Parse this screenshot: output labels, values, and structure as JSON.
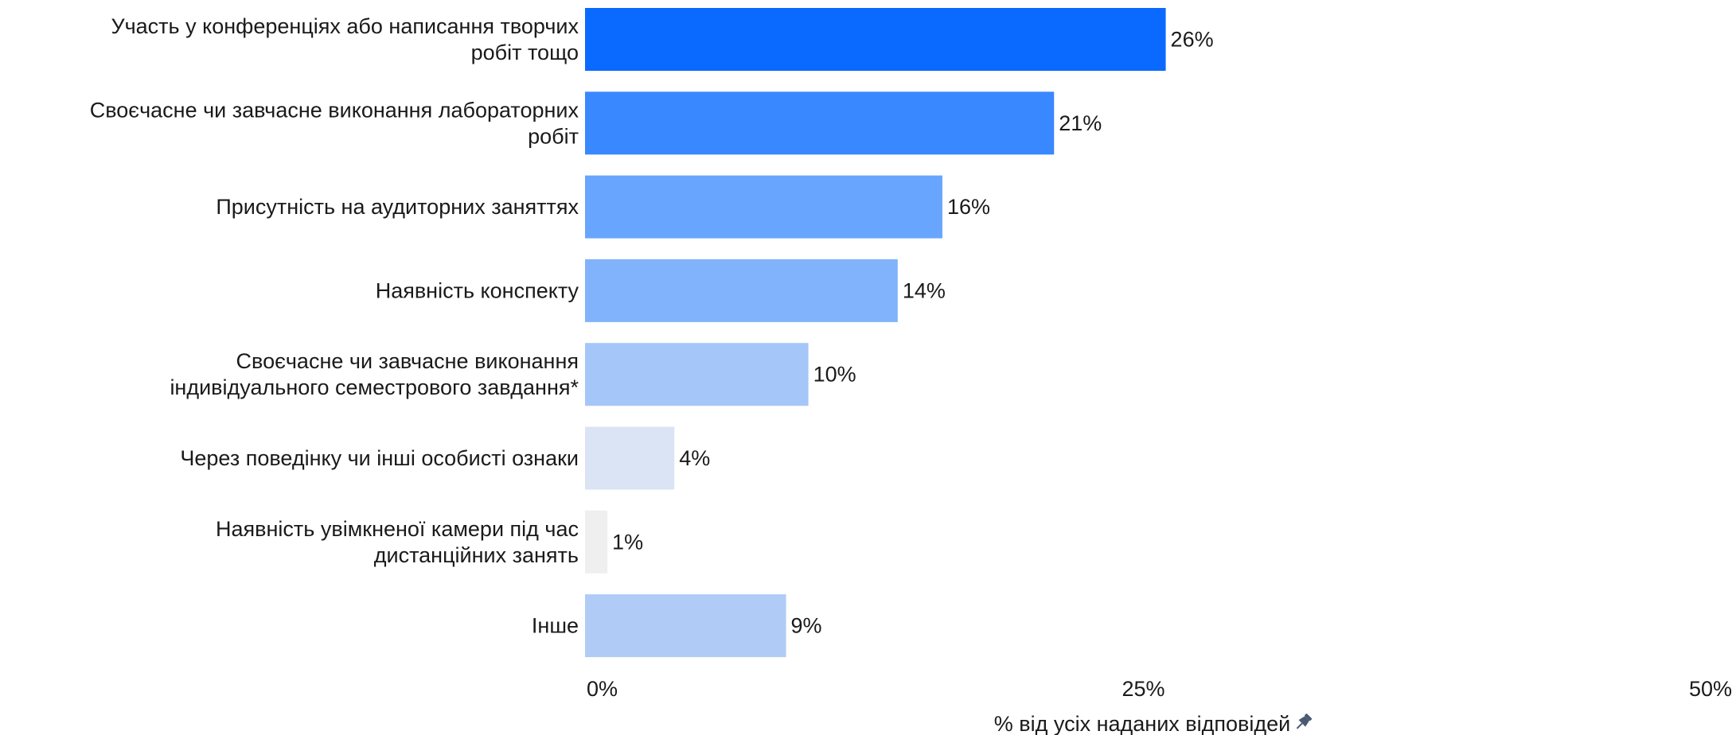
{
  "chart_data": {
    "type": "bar",
    "orientation": "horizontal",
    "categories": [
      [
        "Участь у конференціях або написання творчих",
        "робіт тощо"
      ],
      [
        "Своєчасне чи завчасне виконання лабораторних",
        "робіт"
      ],
      [
        "Присутність на аудиторних заняттях"
      ],
      [
        "Наявність конспекту"
      ],
      [
        "Своєчасне чи завчасне виконання",
        "індивідуального семестрового завдання*"
      ],
      [
        "Через поведінку чи інші особисті ознаки"
      ],
      [
        "Наявність увімкненої камери під час",
        "дистанційних занять"
      ],
      [
        "Інше"
      ]
    ],
    "values": [
      26,
      21,
      16,
      14,
      10,
      4,
      1,
      9
    ],
    "value_labels": [
      "26%",
      "21%",
      "16%",
      "14%",
      "10%",
      "4%",
      "1%",
      "9%"
    ],
    "bar_colors": [
      "#0a6aff",
      "#3a88ff",
      "#68a5ff",
      "#80b3fb",
      "#a5c6f9",
      "#dbe4f4",
      "#efefef",
      "#b0cbf6"
    ],
    "xlim": [
      0,
      50
    ],
    "xticks": [
      0,
      25,
      50
    ],
    "xtick_labels": [
      "0%",
      "25%",
      "50%"
    ],
    "xlabel": "% від усіх наданих відповідей",
    "xlabel_icon": "pin-icon",
    "title": "",
    "ylabel": "",
    "grid": false,
    "legend": "none"
  }
}
